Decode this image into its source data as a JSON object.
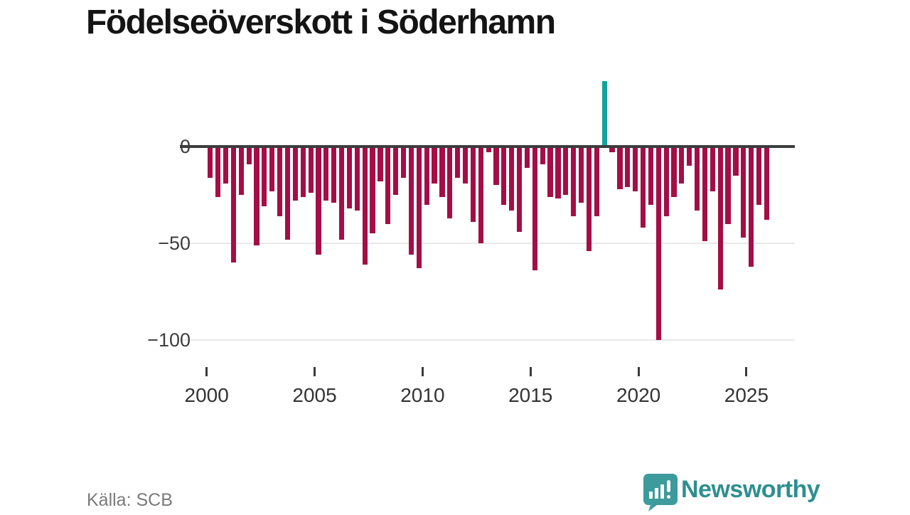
{
  "title": "Födelseöverskott i Söderhamn",
  "source": "Källa: SCB",
  "logo": {
    "text": "Newsworthy"
  },
  "colors": {
    "bar": "#a50d45",
    "highlight": "#12a39e",
    "axis": "#3c3c3c",
    "grid": "#e9e9e9",
    "tick_text": "#333333",
    "muted_text": "#7a7a7a",
    "logo_teal": "#2e8f8f",
    "title_text": "#141414"
  },
  "chart_data": {
    "type": "bar",
    "title": "Födelseöverskott i Söderhamn",
    "xlabel": "",
    "ylabel": "",
    "x_start_year": 2000,
    "bars_per_year": 2.8,
    "x_tick_years": [
      2000,
      2005,
      2010,
      2015,
      2020,
      2025
    ],
    "y_ticks": [
      {
        "value": 0,
        "label": "0"
      },
      {
        "value": -50,
        "label": "−50"
      },
      {
        "value": -100,
        "label": "−100"
      }
    ],
    "ylim": [
      -110,
      40
    ],
    "grid": "horizontal-light",
    "legend": "none",
    "highlight_index": 51,
    "values": [
      -16,
      -26,
      -19,
      -60,
      -25,
      -9,
      -51,
      -31,
      -23,
      -36,
      -48,
      -28,
      -26,
      -24,
      -56,
      -28,
      -29,
      -48,
      -32,
      -33,
      -61,
      -45,
      -18,
      -40,
      -25,
      -16,
      -56,
      -63,
      -30,
      -19,
      -26,
      -37,
      -16,
      -19,
      -39,
      -50,
      -3,
      -20,
      -30,
      -33,
      -44,
      -11,
      -64,
      -9,
      -26,
      -27,
      -25,
      -36,
      -29,
      -54,
      -36,
      34,
      -3,
      -22,
      -21,
      -23,
      -42,
      -30,
      -100,
      -36,
      -26,
      -19,
      -10,
      -33,
      -49,
      -23,
      -74,
      -40,
      -15,
      -47,
      -62,
      -30,
      -38
    ]
  }
}
